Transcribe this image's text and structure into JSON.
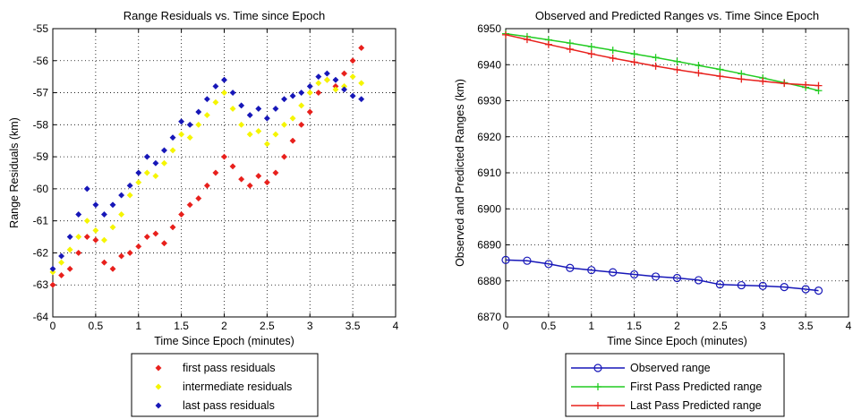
{
  "chart_data": [
    {
      "type": "scatter",
      "title": "Range Residuals vs. Time since Epoch",
      "xlabel": "Time Since Epoch (minutes)",
      "ylabel": "Range Residuals (km)",
      "xlim": [
        0,
        4
      ],
      "ylim": [
        -64,
        -55
      ],
      "xticks": [
        "0",
        "0.5",
        "1",
        "1.5",
        "2",
        "2.5",
        "3",
        "3.5",
        "4"
      ],
      "yticks": [
        "-64",
        "-63",
        "-62",
        "-61",
        "-60",
        "-59",
        "-58",
        "-57",
        "-56",
        "-55"
      ],
      "grid": true,
      "legend_position": "below",
      "series": [
        {
          "name": "first pass residuals",
          "color": "#e8201c",
          "marker": "diamond",
          "x": [
            0.0,
            0.1,
            0.2,
            0.3,
            0.4,
            0.5,
            0.6,
            0.7,
            0.8,
            0.9,
            1.0,
            1.1,
            1.2,
            1.3,
            1.4,
            1.5,
            1.6,
            1.7,
            1.8,
            1.9,
            2.0,
            2.1,
            2.2,
            2.3,
            2.4,
            2.5,
            2.6,
            2.7,
            2.8,
            2.9,
            3.0,
            3.1,
            3.2,
            3.3,
            3.4,
            3.5,
            3.6
          ],
          "y": [
            -63.0,
            -62.7,
            -62.5,
            -62.0,
            -61.5,
            -61.6,
            -62.3,
            -62.5,
            -62.1,
            -62.0,
            -61.8,
            -61.5,
            -61.4,
            -61.7,
            -61.2,
            -60.8,
            -60.5,
            -60.3,
            -59.9,
            -59.5,
            -59.0,
            -59.3,
            -59.7,
            -59.9,
            -59.6,
            -59.8,
            -59.5,
            -59.0,
            -58.5,
            -58.0,
            -57.6,
            -57.0,
            -56.6,
            -56.8,
            -56.4,
            -56.0,
            -55.6
          ]
        },
        {
          "name": "intermediate residuals",
          "color": "#f5f500",
          "marker": "diamond",
          "x": [
            0.0,
            0.1,
            0.2,
            0.3,
            0.4,
            0.5,
            0.6,
            0.7,
            0.8,
            0.9,
            1.0,
            1.1,
            1.2,
            1.3,
            1.4,
            1.5,
            1.6,
            1.7,
            1.8,
            1.9,
            2.0,
            2.1,
            2.2,
            2.3,
            2.4,
            2.5,
            2.6,
            2.7,
            2.8,
            2.9,
            3.0,
            3.1,
            3.2,
            3.3,
            3.4,
            3.5,
            3.6
          ],
          "y": [
            -62.6,
            -62.3,
            -61.9,
            -61.5,
            -61.0,
            -61.3,
            -61.6,
            -61.2,
            -60.8,
            -60.2,
            -59.8,
            -59.5,
            -59.6,
            -59.2,
            -58.8,
            -58.3,
            -58.4,
            -58.0,
            -57.7,
            -57.3,
            -57.0,
            -57.5,
            -58.0,
            -58.3,
            -58.2,
            -58.6,
            -58.3,
            -58.0,
            -57.8,
            -57.4,
            -57.0,
            -56.7,
            -56.6,
            -56.9,
            -56.8,
            -56.5,
            -56.7
          ]
        },
        {
          "name": "last pass residuals",
          "color": "#1717b8",
          "marker": "diamond",
          "x": [
            0.0,
            0.1,
            0.2,
            0.3,
            0.4,
            0.5,
            0.6,
            0.7,
            0.8,
            0.9,
            1.0,
            1.1,
            1.2,
            1.3,
            1.4,
            1.5,
            1.6,
            1.7,
            1.8,
            1.9,
            2.0,
            2.1,
            2.2,
            2.3,
            2.4,
            2.5,
            2.6,
            2.7,
            2.8,
            2.9,
            3.0,
            3.1,
            3.2,
            3.3,
            3.4,
            3.5,
            3.6
          ],
          "y": [
            -62.5,
            -62.1,
            -61.5,
            -60.8,
            -60.0,
            -60.5,
            -60.8,
            -60.5,
            -60.2,
            -59.9,
            -59.5,
            -59.0,
            -59.2,
            -58.8,
            -58.4,
            -57.9,
            -58.0,
            -57.6,
            -57.2,
            -56.8,
            -56.6,
            -57.0,
            -57.4,
            -57.7,
            -57.5,
            -57.8,
            -57.5,
            -57.2,
            -57.1,
            -57.0,
            -56.8,
            -56.5,
            -56.4,
            -56.6,
            -56.9,
            -57.1,
            -57.2
          ]
        }
      ]
    },
    {
      "type": "line",
      "title": "Observed and Predicted Ranges vs. Time Since Epoch",
      "xlabel": "Time Since Epoch (minutes)",
      "ylabel": "Observed and Predicted Ranges (km)",
      "xlim": [
        0,
        4
      ],
      "ylim": [
        6870,
        6950
      ],
      "xticks": [
        "0",
        "0.5",
        "1",
        "1.5",
        "2",
        "2.5",
        "3",
        "3.5",
        "4"
      ],
      "yticks": [
        "6870",
        "6880",
        "6890",
        "6900",
        "6910",
        "6920",
        "6930",
        "6940",
        "6950"
      ],
      "grid": true,
      "legend_position": "below",
      "series": [
        {
          "name": "Observed range",
          "color": "#1717b8",
          "marker": "circle",
          "x": [
            0.0,
            0.25,
            0.5,
            0.75,
            1.0,
            1.25,
            1.5,
            1.75,
            2.0,
            2.25,
            2.5,
            2.75,
            3.0,
            3.25,
            3.5,
            3.65
          ],
          "y": [
            6885.8,
            6885.6,
            6884.7,
            6883.6,
            6883.0,
            6882.4,
            6881.8,
            6881.2,
            6880.8,
            6880.2,
            6879.0,
            6878.8,
            6878.6,
            6878.3,
            6877.7,
            6877.3
          ]
        },
        {
          "name": "First Pass Predicted range",
          "color": "#22cc22",
          "marker": "plus",
          "x": [
            0.0,
            0.25,
            0.5,
            0.75,
            1.0,
            1.25,
            1.5,
            1.75,
            2.0,
            2.25,
            2.5,
            2.75,
            3.0,
            3.25,
            3.5,
            3.65
          ],
          "y": [
            6948.6,
            6947.8,
            6946.9,
            6946.0,
            6945.0,
            6944.0,
            6943.0,
            6942.0,
            6940.9,
            6939.8,
            6938.7,
            6937.5,
            6936.3,
            6935.0,
            6933.7,
            6932.8
          ]
        },
        {
          "name": "Last Pass Predicted range",
          "color": "#e8201c",
          "marker": "plus",
          "x": [
            0.0,
            0.25,
            0.5,
            0.75,
            1.0,
            1.25,
            1.5,
            1.75,
            2.0,
            2.25,
            2.5,
            2.75,
            3.0,
            3.25,
            3.5,
            3.65
          ],
          "y": [
            6948.3,
            6947.0,
            6945.6,
            6944.3,
            6943.0,
            6941.8,
            6940.7,
            6939.6,
            6938.6,
            6937.7,
            6936.8,
            6936.0,
            6935.4,
            6934.8,
            6934.4,
            6934.2
          ]
        }
      ]
    }
  ]
}
